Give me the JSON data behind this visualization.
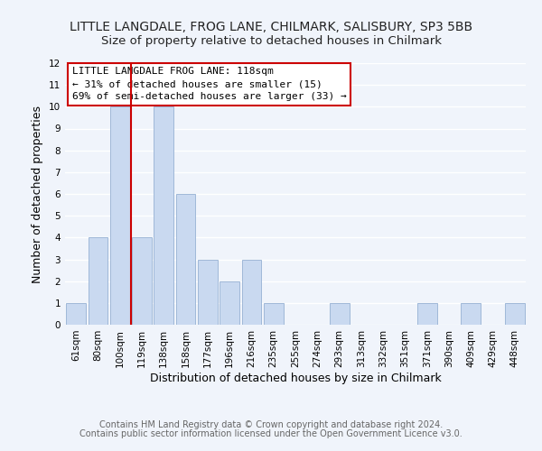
{
  "title": "LITTLE LANGDALE, FROG LANE, CHILMARK, SALISBURY, SP3 5BB",
  "subtitle": "Size of property relative to detached houses in Chilmark",
  "xlabel": "Distribution of detached houses by size in Chilmark",
  "ylabel": "Number of detached properties",
  "bar_labels": [
    "61sqm",
    "80sqm",
    "100sqm",
    "119sqm",
    "138sqm",
    "158sqm",
    "177sqm",
    "196sqm",
    "216sqm",
    "235sqm",
    "255sqm",
    "274sqm",
    "293sqm",
    "313sqm",
    "332sqm",
    "351sqm",
    "371sqm",
    "390sqm",
    "409sqm",
    "429sqm",
    "448sqm"
  ],
  "bar_values": [
    1,
    4,
    10,
    4,
    10,
    6,
    3,
    2,
    3,
    1,
    0,
    0,
    1,
    0,
    0,
    0,
    1,
    0,
    1,
    0,
    1
  ],
  "bar_color": "#c9d9f0",
  "bar_edge_color": "#a0b8d8",
  "vline_x_index": 3,
  "vline_color": "#cc0000",
  "ylim": [
    0,
    12
  ],
  "yticks": [
    0,
    1,
    2,
    3,
    4,
    5,
    6,
    7,
    8,
    9,
    10,
    11,
    12
  ],
  "annotation_title": "LITTLE LANGDALE FROG LANE: 118sqm",
  "annotation_line1": "← 31% of detached houses are smaller (15)",
  "annotation_line2": "69% of semi-detached houses are larger (33) →",
  "annotation_box_color": "#ffffff",
  "annotation_box_edgecolor": "#cc0000",
  "footer_line1": "Contains HM Land Registry data © Crown copyright and database right 2024.",
  "footer_line2": "Contains public sector information licensed under the Open Government Licence v3.0.",
  "background_color": "#f0f4fb",
  "grid_color": "#ffffff",
  "title_fontsize": 10,
  "subtitle_fontsize": 9.5,
  "axis_label_fontsize": 9,
  "tick_fontsize": 7.5,
  "footer_fontsize": 7,
  "annotation_fontsize": 8
}
